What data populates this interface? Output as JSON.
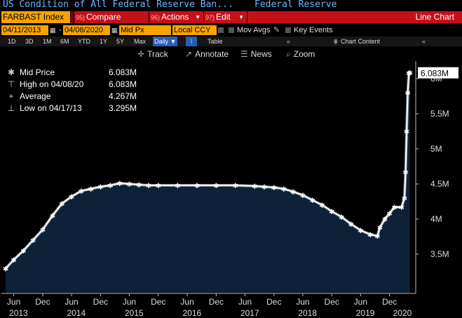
{
  "header": {
    "title": "US Condition of All Federal Reserve Ban...",
    "subtitle": "Federal Reserve"
  },
  "toolbar": {
    "ticker": "FARBAST Index",
    "compare_num": "95)",
    "compare_label": "Compare",
    "actions_num": "96)",
    "actions_label": "Actions",
    "edit_num": "97)",
    "edit_label": "Edit",
    "chart_type": "Line Chart"
  },
  "params": {
    "start_date": "04/11/2013",
    "end_date": "04/08/2020",
    "field": "Mid Px",
    "currency": "Local CCY",
    "mov_avgs": "Mov Avgs",
    "key_events": "Key Events"
  },
  "ranges": {
    "items": [
      "1D",
      "3D",
      "1M",
      "6M",
      "YTD",
      "1Y",
      "5Y",
      "Max"
    ],
    "frequency": "Daily",
    "table": "Table",
    "chart_content": "Chart Content"
  },
  "tools": {
    "track": "Track",
    "annotate": "Annotate",
    "news": "News",
    "zoom": "Zoom"
  },
  "legend": [
    {
      "label": "Mid Price",
      "value": "6.083M"
    },
    {
      "label": "High on 04/08/20",
      "value": "6.083M"
    },
    {
      "label": "Average",
      "value": "4.267M"
    },
    {
      "label": "Low on 04/17/13",
      "value": "3.295M"
    }
  ],
  "colors": {
    "background": "#000000",
    "area_fill": "#0d2138",
    "line": "#ffffff",
    "orange": "#f8a400",
    "red": "#c41019",
    "title_blue": "#6fb7ff"
  },
  "chart_data": {
    "type": "area",
    "series": [
      {
        "name": "Mid Price",
        "x": [
          "2013-04-11",
          "2013-06-01",
          "2013-08-01",
          "2013-10-01",
          "2013-12-01",
          "2014-02-01",
          "2014-04-01",
          "2014-06-01",
          "2014-08-01",
          "2014-10-01",
          "2014-12-01",
          "2015-02-01",
          "2015-04-01",
          "2015-06-01",
          "2015-08-01",
          "2015-10-01",
          "2015-12-01",
          "2016-04-01",
          "2016-08-01",
          "2016-12-01",
          "2017-04-01",
          "2017-08-01",
          "2017-10-01",
          "2017-12-01",
          "2018-02-01",
          "2018-04-01",
          "2018-06-01",
          "2018-08-01",
          "2018-10-01",
          "2018-12-01",
          "2019-02-01",
          "2019-04-01",
          "2019-06-01",
          "2019-08-01",
          "2019-09-15",
          "2019-10-01",
          "2019-11-01",
          "2019-12-01",
          "2020-01-01",
          "2020-02-15",
          "2020-03-04",
          "2020-03-11",
          "2020-03-18",
          "2020-03-25",
          "2020-04-01",
          "2020-04-08"
        ],
        "y": [
          3.295,
          3.42,
          3.55,
          3.7,
          3.85,
          4.05,
          4.22,
          4.32,
          4.4,
          4.43,
          4.46,
          4.48,
          4.51,
          4.5,
          4.49,
          4.48,
          4.48,
          4.48,
          4.48,
          4.48,
          4.48,
          4.47,
          4.46,
          4.45,
          4.43,
          4.39,
          4.34,
          4.27,
          4.2,
          4.11,
          4.03,
          3.93,
          3.84,
          3.78,
          3.76,
          3.88,
          4.0,
          4.08,
          4.17,
          4.17,
          4.3,
          4.67,
          5.25,
          5.8,
          6.08,
          6.083
        ]
      }
    ],
    "ylim": [
      2.95,
      6.25
    ],
    "yticks": [
      3.5,
      4,
      4.5,
      5,
      5.5,
      6
    ],
    "ytick_labels": [
      "3.5M",
      "4M",
      "4.5M",
      "5M",
      "5.5M",
      "6M"
    ],
    "xlim": [
      "2013-03-15",
      "2020-05-10"
    ],
    "month_ticks": [
      {
        "label": "Jun",
        "date": "2013-06-01"
      },
      {
        "label": "Dec",
        "date": "2013-12-01"
      },
      {
        "label": "Jun",
        "date": "2014-06-01"
      },
      {
        "label": "Dec",
        "date": "2014-12-01"
      },
      {
        "label": "Jun",
        "date": "2015-06-01"
      },
      {
        "label": "Dec",
        "date": "2015-12-01"
      },
      {
        "label": "Jun",
        "date": "2016-06-01"
      },
      {
        "label": "Dec",
        "date": "2016-12-01"
      },
      {
        "label": "Jun",
        "date": "2017-06-01"
      },
      {
        "label": "Dec",
        "date": "2017-12-01"
      },
      {
        "label": "Jun",
        "date": "2018-06-01"
      },
      {
        "label": "Dec",
        "date": "2018-12-01"
      },
      {
        "label": "Jun",
        "date": "2019-06-01"
      },
      {
        "label": "Dec",
        "date": "2019-12-01"
      }
    ],
    "year_ticks": [
      {
        "label": "2013",
        "date": "2013-07-01"
      },
      {
        "label": "2014",
        "date": "2014-07-01"
      },
      {
        "label": "2015",
        "date": "2015-07-01"
      },
      {
        "label": "2016",
        "date": "2016-07-01"
      },
      {
        "label": "2017",
        "date": "2017-07-01"
      },
      {
        "label": "2018",
        "date": "2018-07-01"
      },
      {
        "label": "2019",
        "date": "2019-07-01"
      },
      {
        "label": "2020",
        "date": "2020-02-20"
      }
    ],
    "last_value_label": "6.083M",
    "grid": false
  }
}
